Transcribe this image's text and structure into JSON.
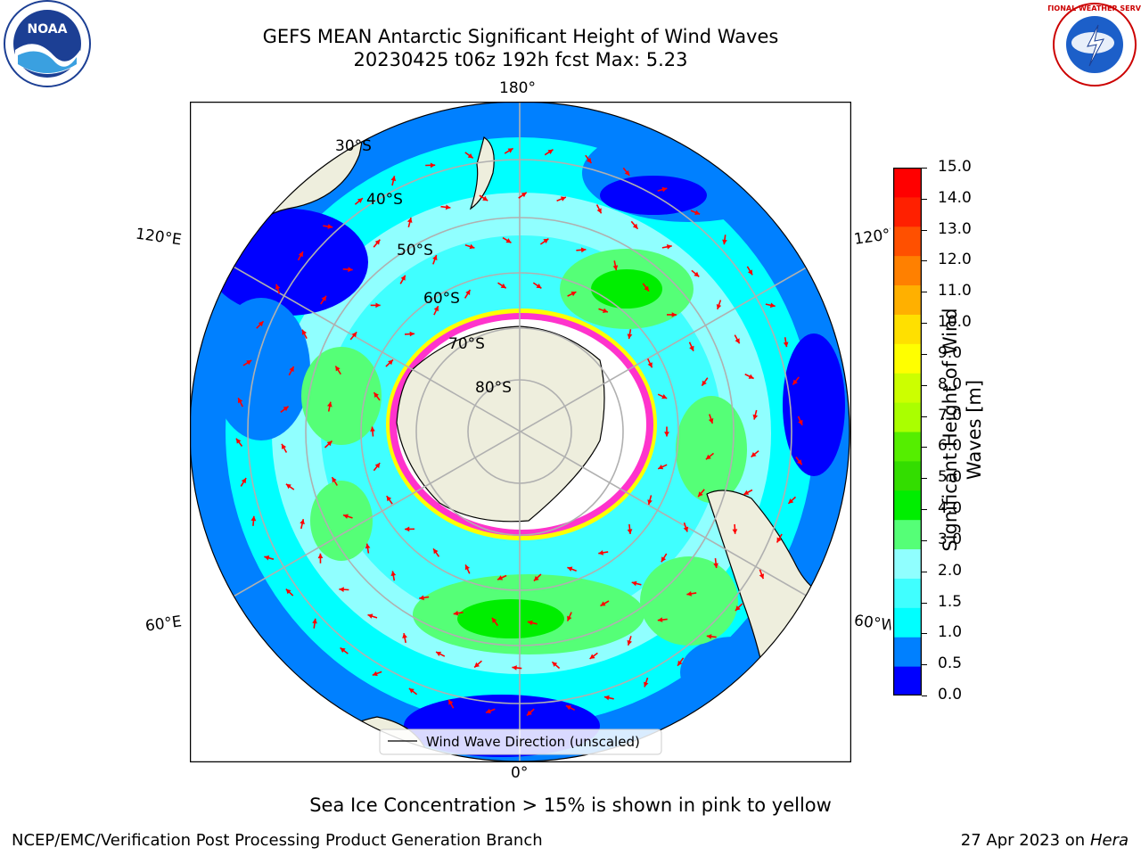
{
  "header": {
    "title_line1": "GEFS MEAN Antarctic Significant Height of Wind Waves",
    "title_line2": "20230425 t06z 192h fcst   Max: 5.23"
  },
  "logos": {
    "noaa_text": "NOAA",
    "noaa_ring": "NATIONAL OCEANIC AND ATMOSPHERIC ADMINISTRATION · U.S. DEPARTMENT OF COMMERCE",
    "nws_ring": "NATIONAL WEATHER SERVICE"
  },
  "map": {
    "lon_labels": {
      "top": "180°",
      "bottom": "0°",
      "left_upper": "120°E",
      "left_lower": "60°E",
      "right_upper": "120°W",
      "right_lower": "60°W"
    },
    "lat_labels": [
      "30°S",
      "40°S",
      "50°S",
      "60°S",
      "70°S",
      "80°S"
    ],
    "legend_label": "Wind Wave Direction (unscaled)",
    "colors": {
      "land": "#eeeedd",
      "ice_edge": "#ff33cc",
      "arrow": "#ff0000",
      "grid": "#b0b0b0"
    }
  },
  "colorbar": {
    "label": "Significant Height of Wind Waves [m]",
    "label_line1": "Significant Height of Wind",
    "label_line2": "Waves [m]",
    "ticks": [
      "15.0",
      "14.0",
      "13.0",
      "12.0",
      "11.0",
      "10.0",
      "9.0",
      "8.0",
      "7.0",
      "6.0",
      "5.0",
      "4.0",
      "3.0",
      "2.0",
      "1.5",
      "1.0",
      "0.5",
      "0.0"
    ],
    "colors": [
      "#0000ff",
      "#0080ff",
      "#00ffff",
      "#40ffff",
      "#90ffff",
      "#55ff77",
      "#00ee00",
      "#33dd00",
      "#55ee00",
      "#aaff00",
      "#ccff00",
      "#ffff00",
      "#ffe000",
      "#ffb000",
      "#ff8000",
      "#ff5000",
      "#ff2000",
      "#ff0000"
    ]
  },
  "notes": {
    "ice_note": "Sea Ice Concentration > 15% is shown in pink to yellow"
  },
  "footer": {
    "left": "NCEP/EMC/Verification Post Processing Product Generation Branch",
    "right_date": "27 Apr 2023 on ",
    "right_machine": "Hera"
  }
}
